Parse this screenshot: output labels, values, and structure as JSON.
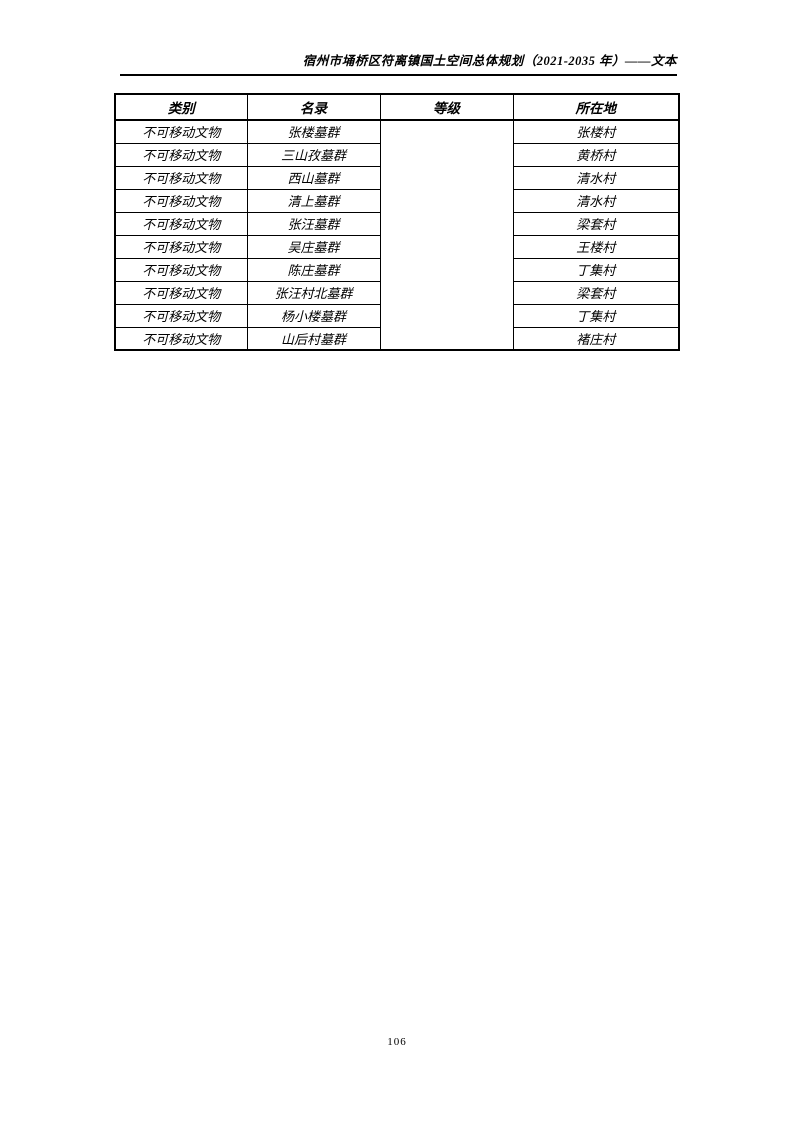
{
  "page": {
    "header_title": "宿州市埇桥区符离镇国土空间总体规划（2021-2035 年）——文本",
    "page_number": "106"
  },
  "table": {
    "columns": [
      "类别",
      "名录",
      "等级",
      "所在地"
    ],
    "grade_value": "",
    "rows": [
      {
        "category": "不可移动文物",
        "name": "张楼墓群",
        "location": "张楼村"
      },
      {
        "category": "不可移动文物",
        "name": "三山孜墓群",
        "location": "黄桥村"
      },
      {
        "category": "不可移动文物",
        "name": "西山墓群",
        "location": "清水村"
      },
      {
        "category": "不可移动文物",
        "name": "清上墓群",
        "location": "清水村"
      },
      {
        "category": "不可移动文物",
        "name": "张汪墓群",
        "location": "梁套村"
      },
      {
        "category": "不可移动文物",
        "name": "吴庄墓群",
        "location": "王楼村"
      },
      {
        "category": "不可移动文物",
        "name": "陈庄墓群",
        "location": "丁集村"
      },
      {
        "category": "不可移动文物",
        "name": "张汪村北墓群",
        "location": "梁套村"
      },
      {
        "category": "不可移动文物",
        "name": "杨小楼墓群",
        "location": "丁集村"
      },
      {
        "category": "不可移动文物",
        "name": "山后村墓群",
        "location": "褚庄村"
      }
    ]
  }
}
